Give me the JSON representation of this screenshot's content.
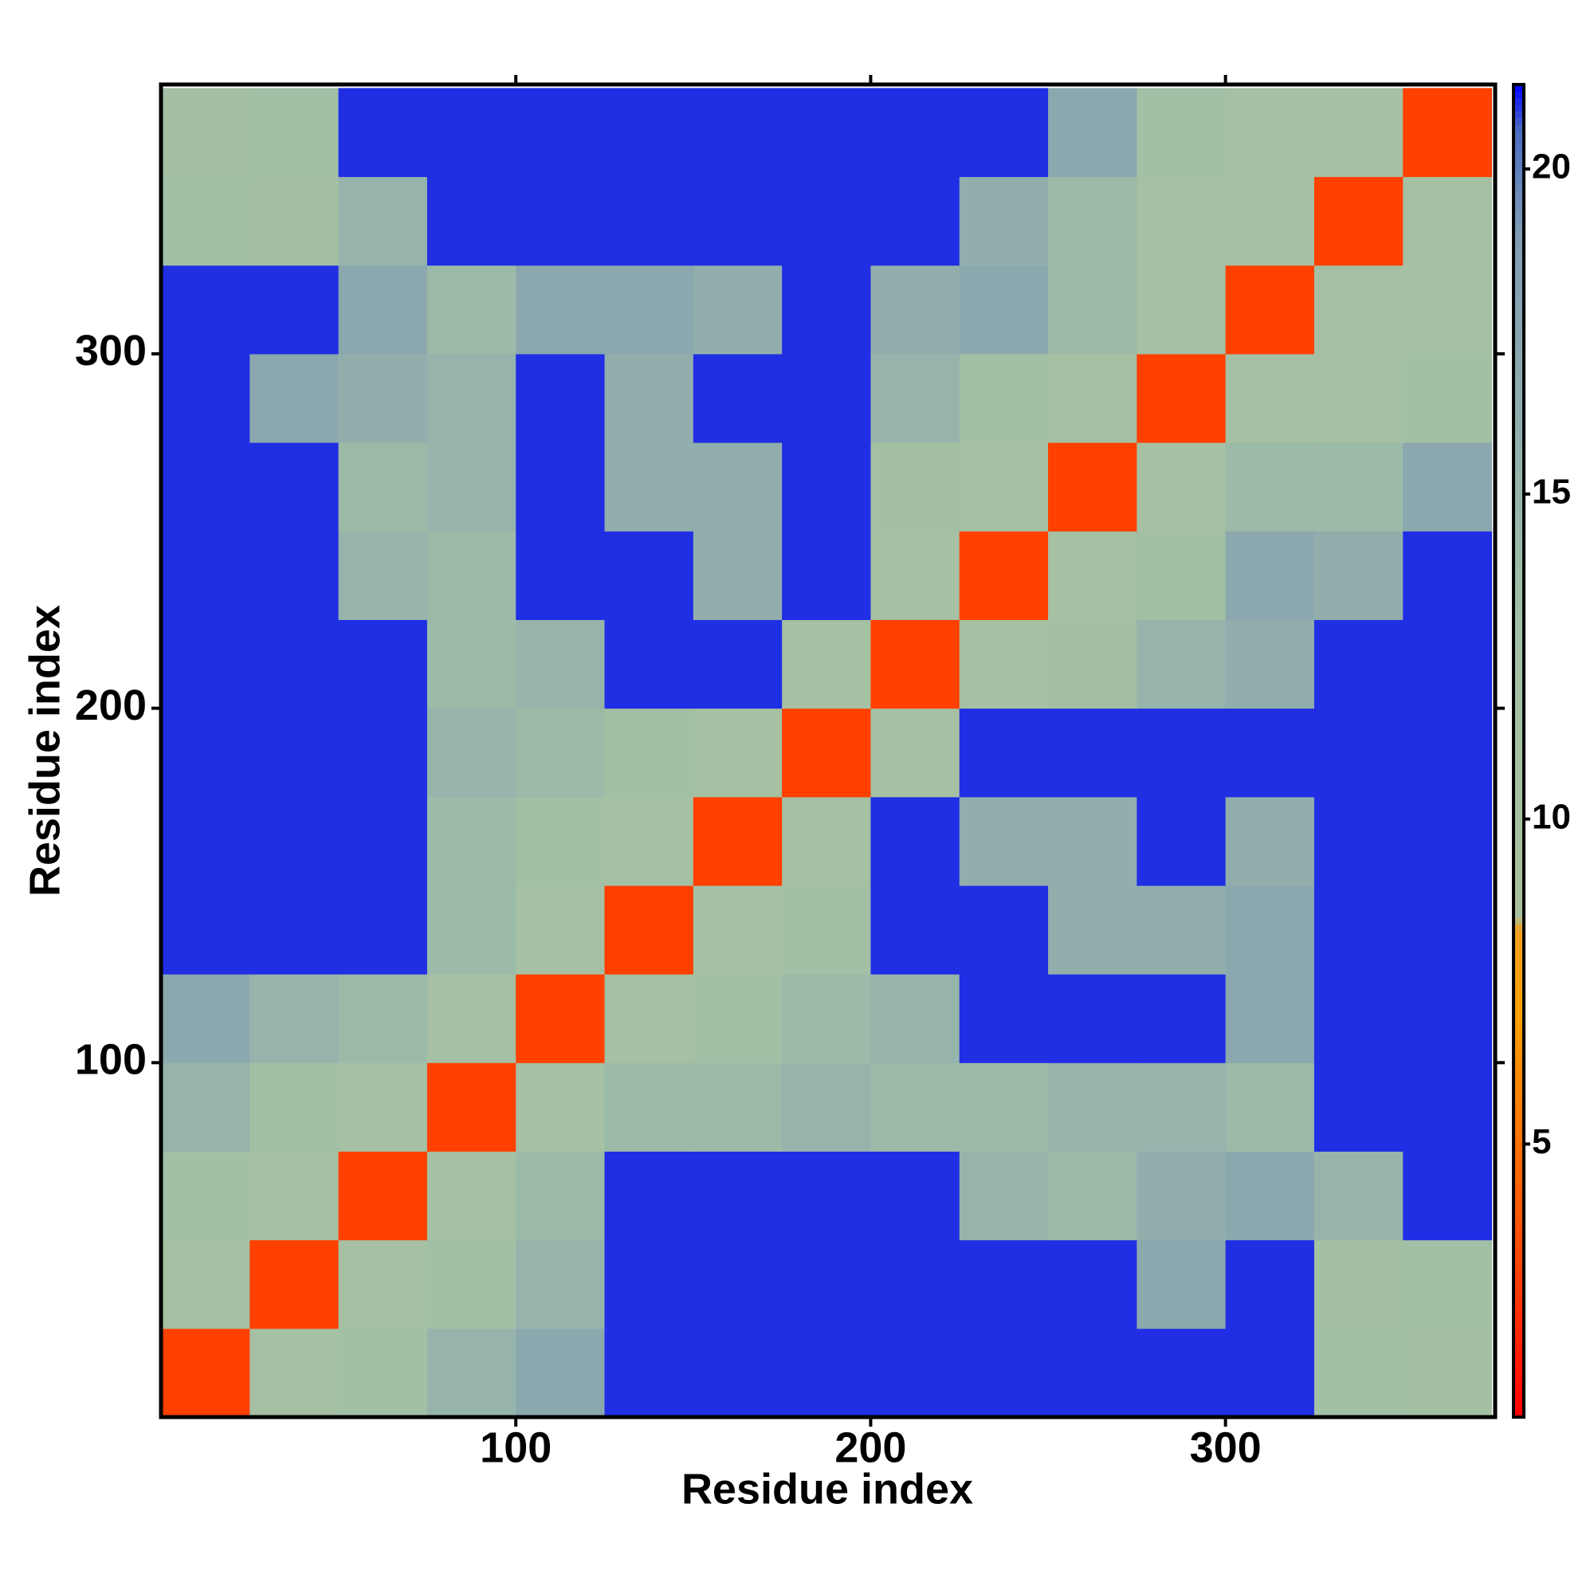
{
  "chart_data": {
    "type": "heatmap",
    "xlabel": "Residue index",
    "ylabel": "Residue index",
    "bins": [
      0,
      25,
      50,
      75,
      100,
      125,
      150,
      175,
      200,
      225,
      250,
      275,
      300,
      325,
      350,
      375
    ],
    "z": [
      [
        3,
        11,
        13,
        15,
        17,
        21,
        21,
        21,
        21,
        21,
        21,
        21,
        21,
        13,
        12
      ],
      [
        11,
        3,
        11,
        13,
        15,
        21,
        21,
        21,
        21,
        21,
        21,
        17,
        21,
        12,
        13
      ],
      [
        13,
        11,
        3,
        11,
        14,
        21,
        21,
        21,
        21,
        15,
        14,
        16,
        17,
        15,
        21
      ],
      [
        15,
        13,
        11,
        3,
        11,
        14,
        14,
        15,
        14,
        14,
        15,
        15,
        14,
        21,
        21
      ],
      [
        17,
        15,
        14,
        11,
        3,
        11,
        13,
        14,
        15,
        21,
        21,
        21,
        17,
        21,
        21
      ],
      [
        21,
        21,
        21,
        14,
        11,
        3,
        11,
        13,
        21,
        21,
        16,
        16,
        17,
        21,
        21
      ],
      [
        21,
        21,
        21,
        14,
        13,
        11,
        3,
        11,
        21,
        16,
        16,
        21,
        16,
        21,
        21
      ],
      [
        21,
        21,
        21,
        15,
        14,
        13,
        11,
        3,
        11,
        21,
        21,
        21,
        21,
        21,
        21
      ],
      [
        21,
        21,
        21,
        14,
        15,
        21,
        21,
        11,
        3,
        11,
        12,
        15,
        16,
        21,
        21
      ],
      [
        21,
        21,
        15,
        14,
        21,
        21,
        16,
        21,
        11,
        3,
        11,
        13,
        17,
        16,
        21
      ],
      [
        21,
        21,
        14,
        15,
        21,
        16,
        16,
        21,
        12,
        11,
        3,
        11,
        14,
        14,
        17
      ],
      [
        21,
        17,
        16,
        15,
        21,
        16,
        21,
        21,
        15,
        13,
        11,
        3,
        11,
        11,
        13
      ],
      [
        21,
        21,
        17,
        14,
        17,
        17,
        16,
        21,
        16,
        17,
        14,
        11,
        3,
        11,
        11
      ],
      [
        13,
        12,
        15,
        21,
        21,
        21,
        21,
        21,
        21,
        16,
        14,
        11,
        11,
        3,
        11
      ],
      [
        12,
        13,
        21,
        21,
        21,
        21,
        21,
        21,
        21,
        21,
        17,
        13,
        11,
        11,
        3
      ]
    ],
    "xlim": [
      0,
      376
    ],
    "ylim": [
      0,
      376
    ],
    "xticks": [
      100,
      200,
      300
    ],
    "yticks": [
      100,
      200,
      300
    ],
    "zlim": [
      0.8,
      21.3
    ],
    "zticks": [
      5,
      10,
      15,
      20
    ],
    "colorscale": [
      [
        0.8,
        "#ff0000"
      ],
      [
        3,
        "#ff4000"
      ],
      [
        7,
        "#ffa000"
      ],
      [
        8.3,
        "#f0a020"
      ],
      [
        8.5,
        "#a8c09c"
      ],
      [
        13,
        "#a2c0a6"
      ],
      [
        19,
        "#7f9cb4"
      ],
      [
        20.6,
        "#4a6cc0"
      ],
      [
        21.3,
        "#0000ff"
      ]
    ]
  }
}
